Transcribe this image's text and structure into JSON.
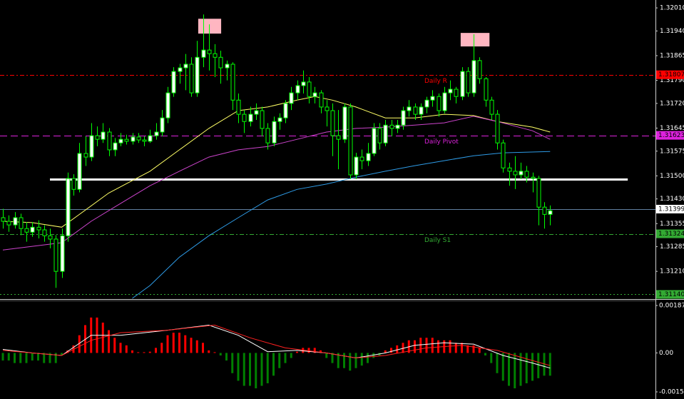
{
  "chart_data": {
    "type": "candlestick",
    "ylim": [
      1.31128,
      1.32034
    ],
    "yticks": [
      {
        "value": 1.3201,
        "label": "1.32010"
      },
      {
        "value": 1.3194,
        "label": "1.31940"
      },
      1.31865,
      {
        "value": 1.3179,
        "label": "1.31790"
      },
      {
        "value": 1.3172,
        "label": "1.31720"
      },
      1.31645,
      1.31575,
      {
        "value": 1.315,
        "label": "1.31500"
      },
      {
        "value": 1.3143,
        "label": "1.31430"
      },
      1.31355,
      1.31285,
      {
        "value": 1.3121,
        "label": "1.31210"
      }
    ],
    "wick_color": "#00ff00",
    "up_fill": "#ffffff",
    "down_fill": "#000000",
    "ohlc": [
      [
        1.31373,
        1.314,
        1.3134,
        1.31362
      ],
      [
        1.31362,
        1.3138,
        1.3133,
        1.31351
      ],
      [
        1.31351,
        1.3139,
        1.3134,
        1.31373
      ],
      [
        1.31373,
        1.31385,
        1.3132,
        1.3134
      ],
      [
        1.3134,
        1.3136,
        1.313,
        1.31329
      ],
      [
        1.31329,
        1.3136,
        1.31315,
        1.31344
      ],
      [
        1.31344,
        1.31365,
        1.3131,
        1.31336
      ],
      [
        1.31336,
        1.3135,
        1.313,
        1.31318
      ],
      [
        1.31318,
        1.3134,
        1.3128,
        1.31308
      ],
      [
        1.31308,
        1.3132,
        1.3116,
        1.3121
      ],
      [
        1.3121,
        1.3134,
        1.3119,
        1.31318
      ],
      [
        1.31318,
        1.3151,
        1.313,
        1.31492
      ],
      [
        1.31492,
        1.31505,
        1.3144,
        1.31459
      ],
      [
        1.31459,
        1.316,
        1.3145,
        1.31568
      ],
      [
        1.31568,
        1.3162,
        1.3153,
        1.31557
      ],
      [
        1.31557,
        1.3166,
        1.31545,
        1.31622
      ],
      [
        1.31622,
        1.3165,
        1.3159,
        1.31611
      ],
      [
        1.31611,
        1.3166,
        1.316,
        1.31633
      ],
      [
        1.31633,
        1.31645,
        1.3156,
        1.31579
      ],
      [
        1.31579,
        1.31615,
        1.3156,
        1.316
      ],
      [
        1.316,
        1.3163,
        1.3159,
        1.31611
      ],
      [
        1.31611,
        1.31625,
        1.31595,
        1.31605
      ],
      [
        1.31605,
        1.3163,
        1.31595,
        1.31618
      ],
      [
        1.31618,
        1.3163,
        1.316,
        1.31609
      ],
      [
        1.31609,
        1.3162,
        1.3159,
        1.31605
      ],
      [
        1.31605,
        1.3164,
        1.316,
        1.31622
      ],
      [
        1.31622,
        1.3166,
        1.3161,
        1.31633
      ],
      [
        1.31633,
        1.317,
        1.3162,
        1.31676
      ],
      [
        1.31676,
        1.3177,
        1.3166,
        1.31752
      ],
      [
        1.31752,
        1.3183,
        1.3174,
        1.31817
      ],
      [
        1.31817,
        1.3184,
        1.3178,
        1.31828
      ],
      [
        1.31828,
        1.3187,
        1.3176,
        1.31839
      ],
      [
        1.31839,
        1.3186,
        1.3174,
        1.31752
      ],
      [
        1.31752,
        1.3191,
        1.3174,
        1.3186
      ],
      [
        1.3186,
        1.3199,
        1.3183,
        1.31882
      ],
      [
        1.31882,
        1.3196,
        1.3182,
        1.31871
      ],
      [
        1.31871,
        1.319,
        1.318,
        1.3186
      ],
      [
        1.3186,
        1.3188,
        1.3178,
        1.31828
      ],
      [
        1.31828,
        1.3185,
        1.3179,
        1.31839
      ],
      [
        1.31839,
        1.31845,
        1.317,
        1.3173
      ],
      [
        1.3173,
        1.3175,
        1.3166,
        1.31687
      ],
      [
        1.31687,
        1.317,
        1.3163,
        1.31665
      ],
      [
        1.31665,
        1.3171,
        1.3165,
        1.31687
      ],
      [
        1.31687,
        1.3172,
        1.3167,
        1.31698
      ],
      [
        1.31698,
        1.3171,
        1.3162,
        1.31644
      ],
      [
        1.31644,
        1.3166,
        1.3158,
        1.316
      ],
      [
        1.316,
        1.3168,
        1.3159,
        1.31665
      ],
      [
        1.31665,
        1.3169,
        1.3164,
        1.31676
      ],
      [
        1.31676,
        1.3173,
        1.3166,
        1.3172
      ],
      [
        1.3172,
        1.3177,
        1.317,
        1.31752
      ],
      [
        1.31752,
        1.3179,
        1.3173,
        1.31774
      ],
      [
        1.31774,
        1.3182,
        1.3175,
        1.31785
      ],
      [
        1.31785,
        1.318,
        1.3172,
        1.31741
      ],
      [
        1.31741,
        1.3177,
        1.3172,
        1.31752
      ],
      [
        1.31752,
        1.3176,
        1.3169,
        1.31709
      ],
      [
        1.31709,
        1.3173,
        1.3165,
        1.31698
      ],
      [
        1.31698,
        1.3172,
        1.3156,
        1.31622
      ],
      [
        1.31622,
        1.317,
        1.3152,
        1.31611
      ],
      [
        1.31611,
        1.3172,
        1.316,
        1.31709
      ],
      [
        1.31709,
        1.3172,
        1.3149,
        1.31503
      ],
      [
        1.31503,
        1.3157,
        1.3149,
        1.31557
      ],
      [
        1.31557,
        1.3158,
        1.3152,
        1.31546
      ],
      [
        1.31546,
        1.316,
        1.3153,
        1.31568
      ],
      [
        1.31568,
        1.3166,
        1.3156,
        1.31644
      ],
      [
        1.31644,
        1.3166,
        1.3158,
        1.316
      ],
      [
        1.316,
        1.3167,
        1.3159,
        1.31654
      ],
      [
        1.31654,
        1.3167,
        1.3162,
        1.31644
      ],
      [
        1.31644,
        1.3167,
        1.3163,
        1.31654
      ],
      [
        1.31654,
        1.3171,
        1.3164,
        1.31698
      ],
      [
        1.31698,
        1.3173,
        1.3168,
        1.31709
      ],
      [
        1.31709,
        1.3172,
        1.3167,
        1.31687
      ],
      [
        1.31687,
        1.3172,
        1.3167,
        1.31709
      ],
      [
        1.31709,
        1.3174,
        1.3169,
        1.3173
      ],
      [
        1.3173,
        1.3176,
        1.3171,
        1.31741
      ],
      [
        1.31741,
        1.3175,
        1.3168,
        1.31698
      ],
      [
        1.31698,
        1.3177,
        1.3169,
        1.31752
      ],
      [
        1.31752,
        1.3179,
        1.3173,
        1.31763
      ],
      [
        1.31763,
        1.3177,
        1.3172,
        1.31741
      ],
      [
        1.31741,
        1.3183,
        1.3173,
        1.31817
      ],
      [
        1.31817,
        1.3183,
        1.3174,
        1.31752
      ],
      [
        1.31752,
        1.3193,
        1.3174,
        1.3185
      ],
      [
        1.3185,
        1.3186,
        1.3178,
        1.31795
      ],
      [
        1.31795,
        1.318,
        1.3171,
        1.3173
      ],
      [
        1.3173,
        1.3174,
        1.3167,
        1.31687
      ],
      [
        1.31687,
        1.317,
        1.3158,
        1.316
      ],
      [
        1.316,
        1.3161,
        1.3151,
        1.31524
      ],
      [
        1.31524,
        1.3154,
        1.3147,
        1.31514
      ],
      [
        1.31514,
        1.3156,
        1.3146,
        1.31503
      ],
      [
        1.31503,
        1.3154,
        1.3149,
        1.31514
      ],
      [
        1.31514,
        1.3153,
        1.3148,
        1.31496
      ],
      [
        1.31496,
        1.3151,
        1.3145,
        1.31492
      ],
      [
        1.31492,
        1.315,
        1.3135,
        1.31405
      ],
      [
        1.31405,
        1.3142,
        1.3134,
        1.31383
      ],
      [
        1.31383,
        1.3141,
        1.3135,
        1.31394
      ]
    ],
    "moving_averages": [
      {
        "color": "#ffff66",
        "x": [
          0,
          5,
          10,
          13,
          18,
          25,
          30,
          35,
          40,
          45,
          50,
          53,
          56,
          60,
          65,
          70,
          75,
          80,
          84,
          90,
          93
        ],
        "values": [
          1.31362,
          1.31358,
          1.31344,
          1.31383,
          1.31448,
          1.31514,
          1.31579,
          1.31644,
          1.31698,
          1.31709,
          1.3173,
          1.31741,
          1.3173,
          1.31709,
          1.31676,
          1.31676,
          1.31687,
          1.31683,
          1.31665,
          1.31648,
          1.31633
        ]
      },
      {
        "color": "#cc44cc",
        "x": [
          0,
          10,
          15,
          20,
          25,
          30,
          35,
          40,
          45,
          50,
          55,
          60,
          65,
          70,
          75,
          80,
          84,
          90,
          93
        ],
        "values": [
          1.31275,
          1.31297,
          1.31362,
          1.31416,
          1.3147,
          1.31514,
          1.31557,
          1.31579,
          1.31589,
          1.31611,
          1.31633,
          1.31644,
          1.31648,
          1.31654,
          1.31661,
          1.31681,
          1.31665,
          1.31637,
          1.31611
        ]
      },
      {
        "color": "#2e9be6",
        "x": [
          22,
          25,
          30,
          35,
          40,
          45,
          50,
          55,
          60,
          65,
          70,
          75,
          80,
          85,
          93
        ],
        "values": [
          1.31128,
          1.31167,
          1.31253,
          1.31318,
          1.31373,
          1.31427,
          1.31459,
          1.31475,
          1.31496,
          1.31514,
          1.31531,
          1.31546,
          1.31561,
          1.3157,
          1.31574
        ]
      }
    ],
    "levels": [
      {
        "value": 1.31807,
        "color": "#ff0000",
        "style": "dashdot",
        "name": "Daily R",
        "tag_text": "#000000"
      },
      {
        "value": 1.31623,
        "color": "#dd22dd",
        "style": "dashed",
        "name": "Daily Pivot",
        "tag_text": "#000000"
      },
      {
        "value": 1.31399,
        "color": "#5f7f9f",
        "style": "solid",
        "tag_color": "#ffffff",
        "tag_text": "#000000"
      },
      {
        "value": 1.31324,
        "color": "#33aa33",
        "style": "dashdot",
        "name": "Daily S1",
        "tag_text": "#000000"
      },
      {
        "value": {
          "value": 1.3114,
          "label": "1.31140"
        },
        "color": "#33aa33",
        "style": "dotted",
        "tag_text": "#000000"
      }
    ],
    "trendline": {
      "value": 1.31489,
      "from": 8,
      "to": 106.2,
      "color": "#ffffff"
    },
    "rectangles": [
      {
        "x0": 33.2,
        "x1": 37.1,
        "y0": 1.31932,
        "y1": 1.31977,
        "color": "#ffb6c1"
      },
      {
        "x0": 77.8,
        "x1": 82.7,
        "y0": 1.31893,
        "y1": 1.31934,
        "color": "#ffb6c1"
      }
    ],
    "macd": {
      "ylim": [
        -0.001822,
        0.002074
      ],
      "yticks": [
        0.001876,
        {
          "value": 0,
          "label": "0.00"
        },
        -0.00154
      ],
      "pos_color": "#ff0000",
      "neg_color": "#008000",
      "histogram": [
        -0.0003,
        -0.0003,
        -0.0004,
        -0.0004,
        -0.0004,
        -0.0003,
        -0.0003,
        -0.0004,
        -0.0004,
        -0.0004,
        -0.0001,
        0.0001,
        0.0003,
        0.0007,
        0.0011,
        0.0014,
        0.0014,
        0.0012,
        0.0009,
        0.0006,
        0.0004,
        0.0003,
        0.0001,
        3e-05,
        3e-05,
        5e-05,
        0.0002,
        0.0004,
        0.0007,
        0.0008,
        0.0008,
        0.0007,
        0.0006,
        0.0005,
        0.0004,
        0.0001,
        3e-05,
        -0.0001,
        -0.0003,
        -0.0008,
        -0.0011,
        -0.0013,
        -0.0013,
        -0.0014,
        -0.0013,
        -0.0012,
        -0.0009,
        -0.0006,
        -0.0004,
        -0.0002,
        5e-05,
        0.0002,
        0.0002,
        0.0002,
        0.0001,
        -0.0002,
        -0.0004,
        -0.0006,
        -0.0006,
        -0.0007,
        -0.0006,
        -0.0005,
        -0.0004,
        -0.0002,
        -0.0001,
        0.0001,
        0.0002,
        0.0003,
        0.0004,
        0.0005,
        0.0005,
        0.0006,
        0.0006,
        0.0006,
        0.0005,
        0.0005,
        0.0005,
        0.0004,
        0.0004,
        0.0003,
        0.0003,
        0.0002,
        -0.0001,
        -0.0004,
        -0.0008,
        -0.0011,
        -0.0013,
        -0.0014,
        -0.0013,
        -0.0012,
        -0.0011,
        -0.001,
        -0.0009,
        -0.0009
      ],
      "lines": [
        {
          "color": "#ffffff",
          "x": [
            0,
            5,
            10,
            15,
            20,
            28,
            35,
            40,
            45,
            50,
            55,
            60,
            65,
            70,
            75,
            80,
            85,
            90,
            93
          ],
          "values": [
            0.00014,
            0,
            -0.0001,
            0.0007,
            0.0007,
            0.0009,
            0.0011,
            0.0007,
            5e-05,
            0.0001,
            0,
            -0.0002,
            0,
            0.0003,
            0.0004,
            0.00035,
            -0.0001,
            -0.0004,
            -0.0006
          ]
        },
        {
          "color": "#ff2020",
          "x": [
            0,
            5,
            10,
            15,
            20,
            28,
            36,
            42,
            48,
            55,
            60,
            65,
            72,
            78,
            84,
            90,
            93
          ],
          "values": [
            0.0001,
            0,
            -0.0001,
            0.0005,
            0.0008,
            0.0009,
            0.0011,
            0.0006,
            0.0002,
            0,
            -0.0002,
            -0.0001,
            0.0002,
            0.0003,
            0.0001,
            -0.0003,
            -0.0005
          ]
        }
      ]
    }
  }
}
